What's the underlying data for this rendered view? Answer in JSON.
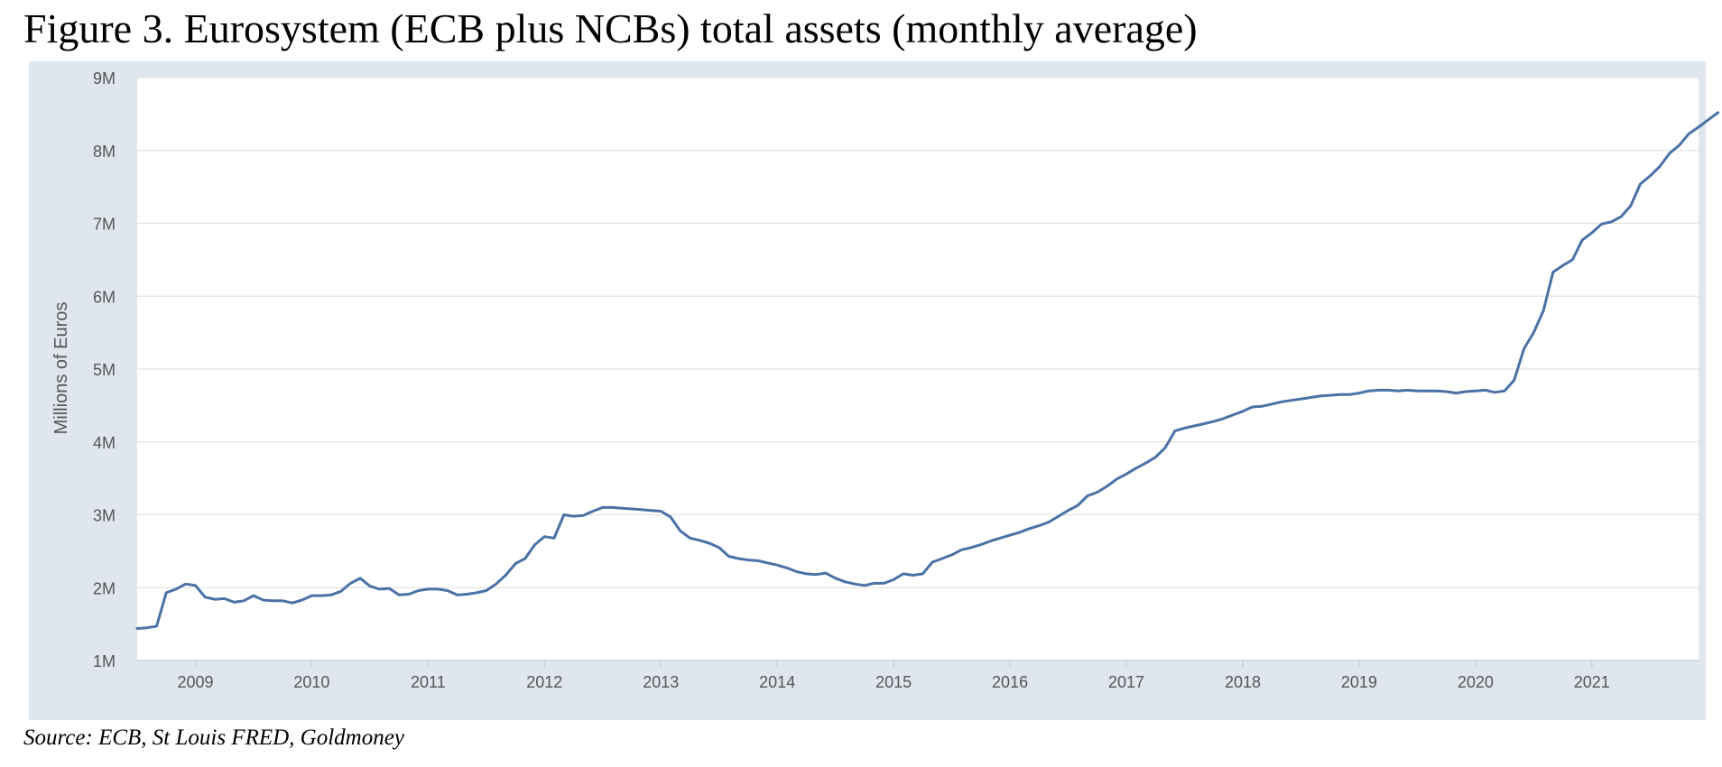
{
  "title": "Figure 3. Eurosystem (ECB plus NCBs) total assets (monthly average)",
  "source": "Source: ECB, St Louis FRED, Goldmoney",
  "colors": {
    "line": "#4a72a6",
    "grid": "#e3e3e3",
    "frame": "#dfe6ee",
    "axis": "#c8d2de"
  },
  "chart_data": {
    "type": "line",
    "title": "Figure 3. Eurosystem (ECB plus NCBs) total assets (monthly average)",
    "xlabel": "",
    "ylabel": "Millions of Euros",
    "ylim": [
      1,
      9
    ],
    "xlim": [
      "2008-07",
      "2021-12"
    ],
    "grid": true,
    "legend": "none",
    "y_ticks": [
      {
        "value": 1,
        "label": "1M"
      },
      {
        "value": 2,
        "label": "2M"
      },
      {
        "value": 3,
        "label": "3M"
      },
      {
        "value": 4,
        "label": "4M"
      },
      {
        "value": 5,
        "label": "5M"
      },
      {
        "value": 6,
        "label": "6M"
      },
      {
        "value": 7,
        "label": "7M"
      },
      {
        "value": 8,
        "label": "8M"
      },
      {
        "value": 9,
        "label": "9M"
      }
    ],
    "x_ticks": [
      "2009",
      "2010",
      "2011",
      "2012",
      "2013",
      "2014",
      "2015",
      "2016",
      "2017",
      "2018",
      "2019",
      "2020",
      "2021"
    ],
    "series": [
      {
        "start": "2008-07",
        "values": [
          1.44,
          1.45,
          1.47,
          1.93,
          1.98,
          2.05,
          2.03,
          1.87,
          1.84,
          1.85,
          1.8,
          1.82,
          1.89,
          1.83,
          1.82,
          1.82,
          1.79,
          1.83,
          1.89,
          1.89,
          1.9,
          1.95,
          2.06,
          2.13,
          2.02,
          1.98,
          1.99,
          1.9,
          1.91,
          1.96,
          1.98,
          1.98,
          1.96,
          1.9,
          1.91,
          1.93,
          1.96,
          2.05,
          2.17,
          2.33,
          2.4,
          2.59,
          2.7,
          2.68,
          3.0,
          2.98,
          2.99,
          3.05,
          3.1,
          3.1,
          3.09,
          3.08,
          3.07,
          3.06,
          3.05,
          2.97,
          2.78,
          2.68,
          2.65,
          2.61,
          2.55,
          2.43,
          2.4,
          2.38,
          2.37,
          2.34,
          2.31,
          2.27,
          2.22,
          2.19,
          2.18,
          2.2,
          2.13,
          2.08,
          2.05,
          2.03,
          2.06,
          2.06,
          2.11,
          2.19,
          2.17,
          2.19,
          2.35,
          2.4,
          2.45,
          2.52,
          2.55,
          2.59,
          2.64,
          2.68,
          2.72,
          2.76,
          2.81,
          2.85,
          2.9,
          2.98,
          3.06,
          3.13,
          3.26,
          3.31,
          3.39,
          3.49,
          3.56,
          3.64,
          3.71,
          3.79,
          3.92,
          4.15,
          4.19,
          4.22,
          4.25,
          4.28,
          4.32,
          4.37,
          4.42,
          4.48,
          4.49,
          4.52,
          4.55,
          4.57,
          4.59,
          4.61,
          4.63,
          4.64,
          4.65,
          4.65,
          4.67,
          4.7,
          4.71,
          4.71,
          4.7,
          4.71,
          4.7,
          4.7,
          4.7,
          4.69,
          4.67,
          4.69,
          4.7,
          4.71,
          4.68,
          4.7,
          4.85,
          5.28,
          5.5,
          5.8,
          6.33,
          6.42,
          6.5,
          6.77,
          6.87,
          6.99,
          7.02,
          7.09,
          7.24,
          7.54,
          7.65,
          7.78,
          7.96,
          8.07,
          8.23,
          8.32,
          8.42,
          8.52
        ]
      }
    ]
  }
}
